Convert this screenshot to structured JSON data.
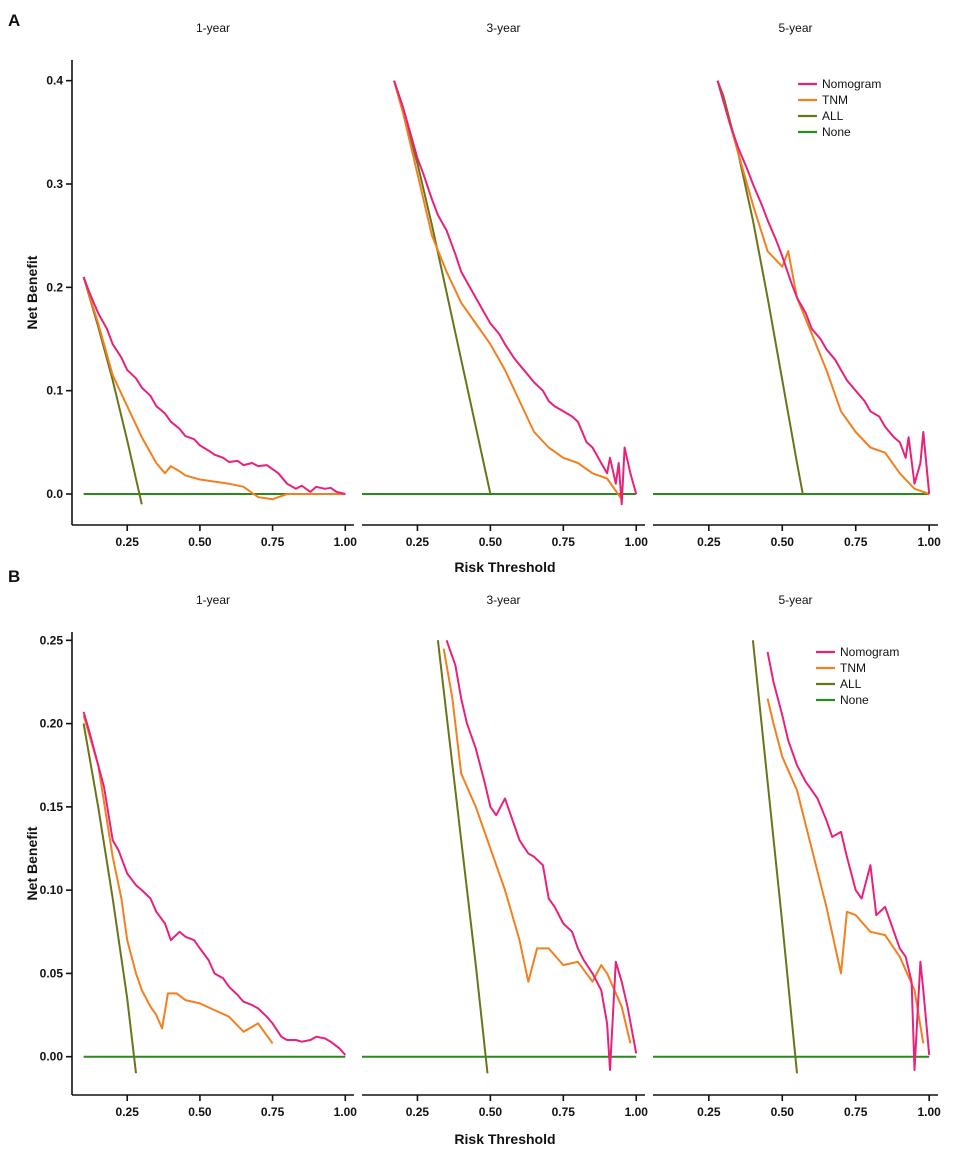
{
  "colors": {
    "Nomogram": "#e8227a",
    "TNM": "#f28020",
    "ALL": "#6b7418",
    "None": "#2a8a1e"
  },
  "panels": [
    {
      "letter": "A",
      "ylabel": "Net Benefit",
      "xlabel": "Risk Threshold",
      "ylim": [
        -0.03,
        0.42
      ],
      "yticks": [
        0.0,
        0.1,
        0.2,
        0.3,
        0.4
      ],
      "ytick_labels": [
        "0.0",
        "0.1",
        "0.2",
        "0.3",
        "0.4"
      ],
      "legend": [
        "Nomogram",
        "TNM",
        "ALL",
        "None"
      ]
    },
    {
      "letter": "B",
      "ylabel": "Net Benefit",
      "xlabel": "Risk Threshold",
      "ylim": [
        -0.023,
        0.255
      ],
      "yticks": [
        0.0,
        0.05,
        0.1,
        0.15,
        0.2,
        0.25
      ],
      "ytick_labels": [
        "0.00",
        "0.05",
        "0.10",
        "0.15",
        "0.20",
        "0.25"
      ],
      "legend": [
        "Nomogram",
        "TNM",
        "ALL",
        "None"
      ]
    }
  ],
  "xticks": [
    0.25,
    0.5,
    0.75,
    1.0
  ],
  "xtick_labels": [
    "0.25",
    "0.50",
    "0.75",
    "1.00"
  ],
  "xlim": [
    0.06,
    1.03
  ],
  "chart_data": [
    {
      "type": "line",
      "panel": "A",
      "title": "1-year",
      "xlabel": "Risk Threshold",
      "ylabel": "Net Benefit",
      "series": [
        {
          "name": "Nomogram",
          "x": [
            0.1,
            0.12,
            0.15,
            0.18,
            0.2,
            0.23,
            0.25,
            0.28,
            0.3,
            0.33,
            0.35,
            0.38,
            0.4,
            0.43,
            0.45,
            0.48,
            0.5,
            0.53,
            0.55,
            0.58,
            0.6,
            0.63,
            0.65,
            0.68,
            0.7,
            0.73,
            0.75,
            0.77,
            0.8,
            0.83,
            0.85,
            0.88,
            0.9,
            0.93,
            0.95,
            0.97,
            1.0
          ],
          "y": [
            0.21,
            0.195,
            0.175,
            0.16,
            0.145,
            0.132,
            0.12,
            0.112,
            0.103,
            0.095,
            0.085,
            0.078,
            0.07,
            0.063,
            0.056,
            0.053,
            0.047,
            0.042,
            0.038,
            0.035,
            0.031,
            0.032,
            0.028,
            0.03,
            0.027,
            0.028,
            0.024,
            0.02,
            0.01,
            0.005,
            0.008,
            0.002,
            0.007,
            0.005,
            0.006,
            0.002,
            0.0
          ]
        },
        {
          "name": "TNM",
          "x": [
            0.1,
            0.15,
            0.2,
            0.25,
            0.3,
            0.35,
            0.38,
            0.4,
            0.43,
            0.45,
            0.5,
            0.6,
            0.65,
            0.7,
            0.75,
            0.8,
            0.85,
            0.9,
            0.95,
            1.0
          ],
          "y": [
            0.21,
            0.165,
            0.115,
            0.085,
            0.055,
            0.03,
            0.02,
            0.027,
            0.022,
            0.018,
            0.014,
            0.01,
            0.007,
            -0.003,
            -0.005,
            0.0,
            0.0,
            0.0,
            0.0,
            0.0
          ]
        },
        {
          "name": "ALL",
          "x": [
            0.1,
            0.15,
            0.2,
            0.25,
            0.3
          ],
          "y": [
            0.21,
            0.162,
            0.11,
            0.052,
            -0.01
          ]
        },
        {
          "name": "None",
          "x": [
            0.1,
            1.0
          ],
          "y": [
            0.0,
            0.0
          ]
        }
      ]
    },
    {
      "type": "line",
      "panel": "A",
      "title": "3-year",
      "xlabel": "Risk Threshold",
      "ylabel": "Net Benefit",
      "series": [
        {
          "name": "Nomogram",
          "x": [
            0.17,
            0.2,
            0.23,
            0.25,
            0.27,
            0.3,
            0.32,
            0.35,
            0.38,
            0.4,
            0.43,
            0.45,
            0.48,
            0.5,
            0.53,
            0.55,
            0.58,
            0.6,
            0.63,
            0.65,
            0.68,
            0.7,
            0.72,
            0.75,
            0.78,
            0.8,
            0.83,
            0.85,
            0.88,
            0.9,
            0.91,
            0.93,
            0.94,
            0.95,
            0.96,
            0.98,
            1.0
          ],
          "y": [
            0.4,
            0.375,
            0.345,
            0.325,
            0.31,
            0.285,
            0.27,
            0.255,
            0.232,
            0.215,
            0.2,
            0.19,
            0.175,
            0.165,
            0.155,
            0.145,
            0.132,
            0.125,
            0.115,
            0.108,
            0.1,
            0.09,
            0.085,
            0.08,
            0.075,
            0.07,
            0.05,
            0.045,
            0.03,
            0.02,
            0.035,
            0.01,
            0.03,
            -0.01,
            0.045,
            0.02,
            0.0
          ]
        },
        {
          "name": "TNM",
          "x": [
            0.17,
            0.2,
            0.25,
            0.3,
            0.35,
            0.4,
            0.45,
            0.5,
            0.55,
            0.6,
            0.65,
            0.7,
            0.75,
            0.8,
            0.85,
            0.9,
            0.95
          ],
          "y": [
            0.4,
            0.37,
            0.31,
            0.25,
            0.215,
            0.185,
            0.165,
            0.145,
            0.12,
            0.09,
            0.06,
            0.045,
            0.035,
            0.03,
            0.02,
            0.015,
            -0.005
          ]
        },
        {
          "name": "ALL",
          "x": [
            0.17,
            0.2,
            0.25,
            0.3,
            0.35,
            0.4,
            0.45,
            0.5
          ],
          "y": [
            0.4,
            0.37,
            0.32,
            0.26,
            0.195,
            0.13,
            0.065,
            0.0
          ]
        },
        {
          "name": "None",
          "x": [
            0.06,
            1.0
          ],
          "y": [
            0.0,
            0.0
          ]
        }
      ]
    },
    {
      "type": "line",
      "panel": "A",
      "title": "5-year",
      "xlabel": "Risk Threshold",
      "ylabel": "Net Benefit",
      "series": [
        {
          "name": "Nomogram",
          "x": [
            0.28,
            0.3,
            0.32,
            0.35,
            0.38,
            0.4,
            0.43,
            0.45,
            0.48,
            0.5,
            0.53,
            0.55,
            0.58,
            0.6,
            0.63,
            0.65,
            0.68,
            0.7,
            0.72,
            0.75,
            0.78,
            0.8,
            0.83,
            0.85,
            0.88,
            0.9,
            0.92,
            0.93,
            0.95,
            0.97,
            0.98,
            1.0
          ],
          "y": [
            0.4,
            0.38,
            0.36,
            0.335,
            0.315,
            0.3,
            0.28,
            0.265,
            0.245,
            0.23,
            0.205,
            0.19,
            0.175,
            0.16,
            0.15,
            0.14,
            0.13,
            0.12,
            0.11,
            0.1,
            0.09,
            0.08,
            0.075,
            0.065,
            0.055,
            0.05,
            0.035,
            0.055,
            0.01,
            0.03,
            0.06,
            0.0
          ]
        },
        {
          "name": "TNM",
          "x": [
            0.28,
            0.3,
            0.35,
            0.4,
            0.45,
            0.5,
            0.52,
            0.55,
            0.6,
            0.65,
            0.7,
            0.75,
            0.8,
            0.85,
            0.9,
            0.95,
            1.0
          ],
          "y": [
            0.4,
            0.38,
            0.33,
            0.28,
            0.235,
            0.22,
            0.235,
            0.19,
            0.155,
            0.12,
            0.08,
            0.06,
            0.045,
            0.04,
            0.02,
            0.005,
            0.0
          ]
        },
        {
          "name": "ALL",
          "x": [
            0.28,
            0.3,
            0.35,
            0.4,
            0.45,
            0.5,
            0.55,
            0.57
          ],
          "y": [
            0.4,
            0.385,
            0.33,
            0.265,
            0.19,
            0.11,
            0.03,
            0.0
          ]
        },
        {
          "name": "None",
          "x": [
            0.06,
            1.0
          ],
          "y": [
            0.0,
            0.0
          ]
        }
      ]
    },
    {
      "type": "line",
      "panel": "B",
      "title": "1-year",
      "xlabel": "Risk Threshold",
      "ylabel": "Net Benefit",
      "series": [
        {
          "name": "Nomogram",
          "x": [
            0.1,
            0.12,
            0.15,
            0.17,
            0.2,
            0.22,
            0.25,
            0.28,
            0.3,
            0.33,
            0.35,
            0.38,
            0.4,
            0.43,
            0.45,
            0.48,
            0.5,
            0.53,
            0.55,
            0.58,
            0.6,
            0.63,
            0.65,
            0.68,
            0.7,
            0.73,
            0.75,
            0.78,
            0.8,
            0.83,
            0.85,
            0.88,
            0.9,
            0.93,
            0.95,
            0.98,
            1.0
          ],
          "y": [
            0.207,
            0.195,
            0.175,
            0.162,
            0.13,
            0.124,
            0.11,
            0.103,
            0.1,
            0.095,
            0.087,
            0.08,
            0.07,
            0.075,
            0.072,
            0.07,
            0.065,
            0.058,
            0.05,
            0.047,
            0.042,
            0.037,
            0.033,
            0.031,
            0.029,
            0.024,
            0.02,
            0.012,
            0.01,
            0.01,
            0.009,
            0.01,
            0.012,
            0.011,
            0.009,
            0.005,
            0.001
          ]
        },
        {
          "name": "TNM",
          "x": [
            0.1,
            0.15,
            0.2,
            0.23,
            0.25,
            0.28,
            0.3,
            0.33,
            0.35,
            0.37,
            0.39,
            0.42,
            0.45,
            0.5,
            0.55,
            0.6,
            0.65,
            0.7,
            0.75
          ],
          "y": [
            0.205,
            0.175,
            0.12,
            0.095,
            0.07,
            0.05,
            0.04,
            0.03,
            0.025,
            0.017,
            0.038,
            0.038,
            0.034,
            0.032,
            0.028,
            0.024,
            0.015,
            0.02,
            0.008
          ]
        },
        {
          "name": "ALL",
          "x": [
            0.1,
            0.15,
            0.2,
            0.25,
            0.28
          ],
          "y": [
            0.2,
            0.15,
            0.095,
            0.035,
            -0.01
          ]
        },
        {
          "name": "None",
          "x": [
            0.1,
            1.0
          ],
          "y": [
            0.0,
            0.0
          ]
        }
      ]
    },
    {
      "type": "line",
      "panel": "B",
      "title": "3-year",
      "xlabel": "Risk Threshold",
      "ylabel": "Net Benefit",
      "series": [
        {
          "name": "Nomogram",
          "x": [
            0.35,
            0.38,
            0.4,
            0.42,
            0.45,
            0.48,
            0.5,
            0.52,
            0.55,
            0.58,
            0.6,
            0.63,
            0.65,
            0.68,
            0.7,
            0.72,
            0.75,
            0.78,
            0.8,
            0.82,
            0.85,
            0.88,
            0.9,
            0.91,
            0.93,
            0.95,
            0.97,
            1.0
          ],
          "y": [
            0.25,
            0.235,
            0.215,
            0.2,
            0.185,
            0.165,
            0.15,
            0.145,
            0.155,
            0.14,
            0.13,
            0.122,
            0.12,
            0.115,
            0.095,
            0.09,
            0.08,
            0.075,
            0.065,
            0.058,
            0.05,
            0.04,
            0.02,
            -0.008,
            0.057,
            0.045,
            0.03,
            0.002
          ]
        },
        {
          "name": "TNM",
          "x": [
            0.34,
            0.37,
            0.4,
            0.45,
            0.5,
            0.55,
            0.6,
            0.63,
            0.66,
            0.7,
            0.75,
            0.8,
            0.85,
            0.88,
            0.9,
            0.95,
            0.98
          ],
          "y": [
            0.245,
            0.215,
            0.17,
            0.15,
            0.125,
            0.1,
            0.07,
            0.045,
            0.065,
            0.065,
            0.055,
            0.057,
            0.045,
            0.055,
            0.05,
            0.03,
            0.008
          ]
        },
        {
          "name": "ALL",
          "x": [
            0.32,
            0.35,
            0.4,
            0.45,
            0.49
          ],
          "y": [
            0.25,
            0.205,
            0.13,
            0.055,
            -0.01
          ]
        },
        {
          "name": "None",
          "x": [
            0.06,
            1.0
          ],
          "y": [
            0.0,
            0.0
          ]
        }
      ]
    },
    {
      "type": "line",
      "panel": "B",
      "title": "5-year",
      "xlabel": "Risk Threshold",
      "ylabel": "Net Benefit",
      "series": [
        {
          "name": "Nomogram",
          "x": [
            0.45,
            0.47,
            0.5,
            0.52,
            0.55,
            0.58,
            0.6,
            0.62,
            0.65,
            0.67,
            0.7,
            0.72,
            0.75,
            0.77,
            0.8,
            0.82,
            0.85,
            0.87,
            0.9,
            0.92,
            0.94,
            0.95,
            0.97,
            0.98,
            1.0
          ],
          "y": [
            0.243,
            0.225,
            0.205,
            0.19,
            0.175,
            0.165,
            0.16,
            0.155,
            0.142,
            0.132,
            0.135,
            0.12,
            0.1,
            0.095,
            0.115,
            0.085,
            0.09,
            0.08,
            0.065,
            0.06,
            0.045,
            -0.008,
            0.057,
            0.04,
            0.001
          ]
        },
        {
          "name": "TNM",
          "x": [
            0.45,
            0.47,
            0.5,
            0.55,
            0.6,
            0.65,
            0.7,
            0.72,
            0.75,
            0.8,
            0.85,
            0.9,
            0.95,
            0.98
          ],
          "y": [
            0.215,
            0.2,
            0.18,
            0.16,
            0.125,
            0.09,
            0.05,
            0.087,
            0.085,
            0.075,
            0.073,
            0.06,
            0.04,
            0.008
          ]
        },
        {
          "name": "ALL",
          "x": [
            0.4,
            0.45,
            0.5,
            0.55
          ],
          "y": [
            0.25,
            0.165,
            0.08,
            -0.01
          ]
        },
        {
          "name": "None",
          "x": [
            0.06,
            1.0
          ],
          "y": [
            0.0,
            0.0
          ]
        }
      ]
    }
  ]
}
